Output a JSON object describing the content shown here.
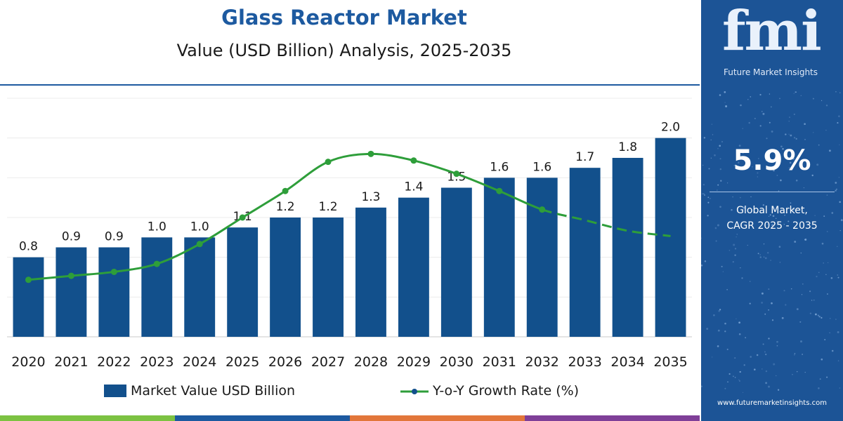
{
  "chart_data": {
    "type": "bar",
    "title": "Glass Reactor Market",
    "subtitle": "Value (USD Billion) Analysis, 2025-2035",
    "categories": [
      "2020",
      "2021",
      "2022",
      "2023",
      "2024",
      "2025",
      "2026",
      "2027",
      "2028",
      "2029",
      "2030",
      "2031",
      "2032",
      "2033",
      "2034",
      "2035"
    ],
    "series": [
      {
        "name": "Market Value USD Billion",
        "type": "bar",
        "color": "#12508c",
        "values": [
          0.8,
          0.9,
          0.9,
          1.0,
          1.0,
          1.1,
          1.2,
          1.2,
          1.3,
          1.4,
          1.5,
          1.6,
          1.6,
          1.7,
          1.8,
          2.0
        ]
      },
      {
        "name": "Y-o-Y Growth Rate (%)",
        "type": "line",
        "color": "#2e9e3a",
        "values": [
          4.3,
          4.6,
          4.9,
          5.5,
          7.0,
          9.0,
          11.0,
          13.2,
          13.8,
          13.3,
          12.3,
          11.0,
          9.6,
          8.8,
          8.0,
          7.6
        ],
        "dashed_from": "2033"
      }
    ],
    "ylim": [
      0,
      2.4
    ],
    "y2lim": [
      0,
      18
    ],
    "grid": true,
    "legend": "bottom"
  },
  "sidebar": {
    "logo": "fmi",
    "logo_tagline": "Future Market Insights",
    "cagr_value": "5.9%",
    "cagr_label_line1": "Global Market,",
    "cagr_label_line2": "CAGR 2025 - 2035",
    "url": "www.futuremarketinsights.com",
    "background_color": "#1c5496"
  },
  "theme": {
    "title_color": "#1d5aa0",
    "stripe_colors": [
      "#7cc242",
      "#1d5aa0",
      "#e2763a",
      "#7f3f98"
    ]
  }
}
